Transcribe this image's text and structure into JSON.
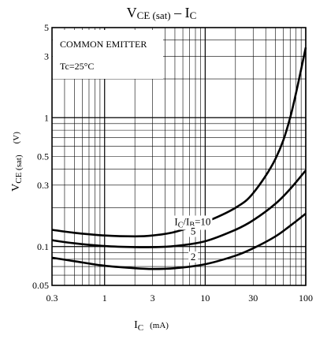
{
  "chart_data": {
    "type": "line",
    "title": {
      "main": "V",
      "sub": "CE (sat)",
      "sep": "  –  ",
      "main2": "I",
      "sub2": "C"
    },
    "xlabel": {
      "main": "I",
      "sub": "C",
      "unit": "(mA)"
    },
    "ylabel": {
      "main": "V",
      "sub": "CE (sat)",
      "unit": "(V)"
    },
    "x_scale": "log",
    "y_scale": "log",
    "xlim": [
      0.3,
      100
    ],
    "ylim": [
      0.05,
      5
    ],
    "x_tick_labels": [
      "0.3",
      "1",
      "3",
      "10",
      "30",
      "100"
    ],
    "y_tick_labels": [
      "0.05",
      "0.1",
      "0.3",
      "0.5",
      "1",
      "3",
      "5"
    ],
    "grid": true,
    "annotations": [
      "COMMON EMITTER",
      "Tc=25°C"
    ],
    "series_label_prefix": {
      "main1": "I",
      "sub1": "C",
      "slash": "/",
      "main2": "I",
      "sub2": "B",
      "eq": "="
    },
    "series": [
      {
        "name": "10",
        "x": [
          0.3,
          0.5,
          1,
          2,
          3,
          5,
          10,
          20,
          30,
          50,
          70,
          100
        ],
        "y": [
          0.135,
          0.128,
          0.122,
          0.12,
          0.122,
          0.13,
          0.155,
          0.2,
          0.26,
          0.48,
          1.0,
          3.5
        ]
      },
      {
        "name": "5",
        "x": [
          0.3,
          0.5,
          1,
          2,
          3,
          5,
          10,
          20,
          30,
          50,
          70,
          100
        ],
        "y": [
          0.112,
          0.106,
          0.101,
          0.099,
          0.099,
          0.101,
          0.11,
          0.135,
          0.16,
          0.215,
          0.28,
          0.39
        ]
      },
      {
        "name": "2",
        "x": [
          0.3,
          0.5,
          1,
          2,
          3,
          5,
          10,
          20,
          30,
          50,
          70,
          100
        ],
        "y": [
          0.082,
          0.077,
          0.071,
          0.068,
          0.067,
          0.068,
          0.073,
          0.085,
          0.097,
          0.12,
          0.145,
          0.18
        ]
      }
    ]
  }
}
